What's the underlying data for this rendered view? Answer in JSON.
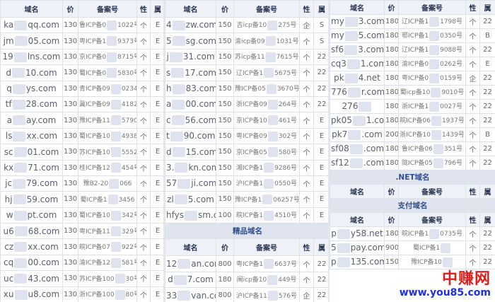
{
  "headers": {
    "domain": "域名",
    "price": "价",
    "icp": "备案号",
    "type": "性",
    "reg": "属"
  },
  "panels": [
    {
      "rows": [
        [
          "ka",
          "qq.com",
          "130",
          "鲁ICP备0",
          "1022号",
          "个",
          "E"
        ],
        [
          "jm",
          "05.com",
          "130",
          "粤ICP备1",
          "9373号",
          "个",
          "E"
        ],
        [
          "19",
          "lns.com",
          "130",
          "京ICP备0",
          "8715号",
          "个",
          "E"
        ],
        [
          "d",
          "10.com",
          "130",
          "蜀ICP备0",
          "5830号",
          "个",
          "E"
        ],
        [
          "q",
          "ys.com",
          "130",
          "青ICP备09",
          "0234号",
          "个",
          "E"
        ],
        [
          "tf",
          "28.com",
          "130",
          "冀ICP备09",
          "4182号",
          "个",
          "E"
        ],
        [
          "a",
          "ay.com",
          "130",
          "豫ICP备11",
          "5790号",
          "个",
          "E"
        ],
        [
          "ls",
          "xx.com",
          "130",
          "蜀ICP备10",
          "4938号",
          "个",
          "E"
        ],
        [
          "sc",
          "01.com",
          "130",
          "苏ICP备10",
          "5552号",
          "个",
          "E"
        ],
        [
          "kx",
          "71.com",
          "130",
          "桂ICP备12",
          "454号",
          "个",
          "E"
        ],
        [
          "jc",
          "79.com",
          "130",
          "豫B2-20",
          "066",
          "个",
          "E"
        ],
        [
          "hj",
          "59.com",
          "130",
          "蜀ICP备1",
          "3456",
          "个",
          "E"
        ],
        [
          "w",
          "pt.com",
          "130",
          "蜀ICP备10",
          "342号",
          "个",
          "E"
        ],
        [
          "u6",
          "68.com",
          "130",
          "粤ICP备11",
          "329号",
          "个",
          "E"
        ],
        [
          "cz",
          "xx.com",
          "130",
          "皖ICP备07",
          "922号",
          "个",
          "E"
        ],
        [
          "cq",
          "00.com",
          "130",
          "渝ICP备12",
          "581号",
          "个",
          "E"
        ],
        [
          "uc",
          "43.com",
          "130",
          "苏ICP备100",
          "30号",
          "个",
          "E"
        ],
        [
          "xu",
          "u8.com",
          "130",
          "浙ICP备100",
          "80号",
          "个",
          "E"
        ]
      ]
    },
    {
      "rows": [
        [
          "4",
          "zw.com",
          "150",
          "吉icp备10",
          "275号",
          "企",
          "S"
        ],
        [
          "5",
          "sg.com",
          "150",
          "渝icp备09",
          "1031号",
          "个",
          "S"
        ],
        [
          "j",
          "31.com",
          "150",
          "苏icp备11",
          "7615号",
          "个",
          "22"
        ],
        [
          "s",
          "17.com",
          "150",
          "辽ICP备1",
          "5675号",
          "个",
          "22"
        ],
        [
          "h",
          "83.com",
          "150",
          "豫ICP备05",
          "3670号",
          "个",
          "22"
        ],
        [
          "a",
          "00.com",
          "150",
          "浙ICP备09",
          "264号",
          "个",
          "22"
        ],
        [
          "c",
          "56.com",
          "150",
          "京ICP备10",
          "461号",
          "个",
          "E"
        ],
        [
          "t",
          "90.com",
          "150",
          "粤ICP备09",
          "302号",
          "个",
          "E"
        ],
        [
          "d",
          "15.com",
          "150",
          "京ICP备05",
          "580号",
          "个",
          "E"
        ],
        [
          "3.",
          "kn.com",
          "150",
          "湘ICP备1",
          "9286号",
          "个",
          "E"
        ],
        [
          "57",
          "ji.com",
          "150",
          "沪ICP备1",
          "0550号",
          "个",
          "E"
        ],
        [
          "zl",
          "5.com",
          "150",
          "豫ICP备1",
          "06257号",
          "个",
          "E"
        ],
        [
          "hfys",
          "sm.com",
          "100",
          "皖ICP备1",
          "4510号",
          "个",
          "E"
        ]
      ],
      "section": "精品域名",
      "rows2": [
        [
          "12",
          "an.com",
          "800",
          "粤ICP备1",
          "6637号",
          "个",
          "22"
        ],
        [
          "d",
          "7.com",
          "180",
          "闽icp备10",
          "449号",
          "个",
          "22"
        ],
        [
          "33",
          "van.com",
          "800",
          "沪ICP备11",
          "576号",
          "企",
          "22"
        ]
      ]
    },
    {
      "rows": [
        [
          "my",
          "3.com",
          "180",
          "辽ICP备1",
          "1798号",
          "个",
          "22"
        ],
        [
          "my",
          "5.com",
          "180",
          "鄂ICP备1",
          "0350号",
          "个",
          "B"
        ],
        [
          "sf6",
          "3.com",
          "180",
          "辽ICP备1",
          "9088号",
          "个",
          "22"
        ],
        [
          "cq3",
          "1.com",
          "180",
          "渝ICP备0",
          "0262号",
          "个",
          "E"
        ],
        [
          "pk",
          "4.net",
          "180",
          "粤ICP备0",
          "0159号",
          "企",
          "22"
        ],
        [
          "776",
          "r.com",
          "180",
          "蜀icp备10",
          "9010号",
          "个",
          "22"
        ],
        [
          "276",
          "",
          "180",
          "浙ICP备1",
          "0027号",
          "个",
          "22"
        ],
        [
          "pk05",
          "1.com",
          "180",
          "皖ICP备06",
          "1937号",
          "个",
          "22"
        ],
        [
          "pk7",
          ".com",
          "200",
          "浙ICP备10",
          "1439号",
          "个",
          "B"
        ],
        [
          "sf08",
          ".com",
          "180",
          "鲁ICP备06",
          "351号",
          "个",
          "22"
        ],
        [
          "sf12",
          ".com",
          "180",
          "陇ICP备05",
          "796号",
          "个",
          "22"
        ]
      ],
      "section": ".NET域名",
      "section2": "支付域名",
      "rows2": [
        [
          "p",
          "y58.net",
          "180",
          "皖ICP备1",
          "0735号",
          "个",
          "22"
        ],
        [
          "5",
          "pay.com",
          "900",
          "蜀ICP备1",
          "",
          "个",
          "22"
        ],
        [
          "p",
          "135.com",
          "150",
          "豫ICP备10",
          "",
          "个",
          "22"
        ]
      ]
    }
  ],
  "watermark": {
    "cn": "中赚网",
    "url": "www.you85.com"
  }
}
